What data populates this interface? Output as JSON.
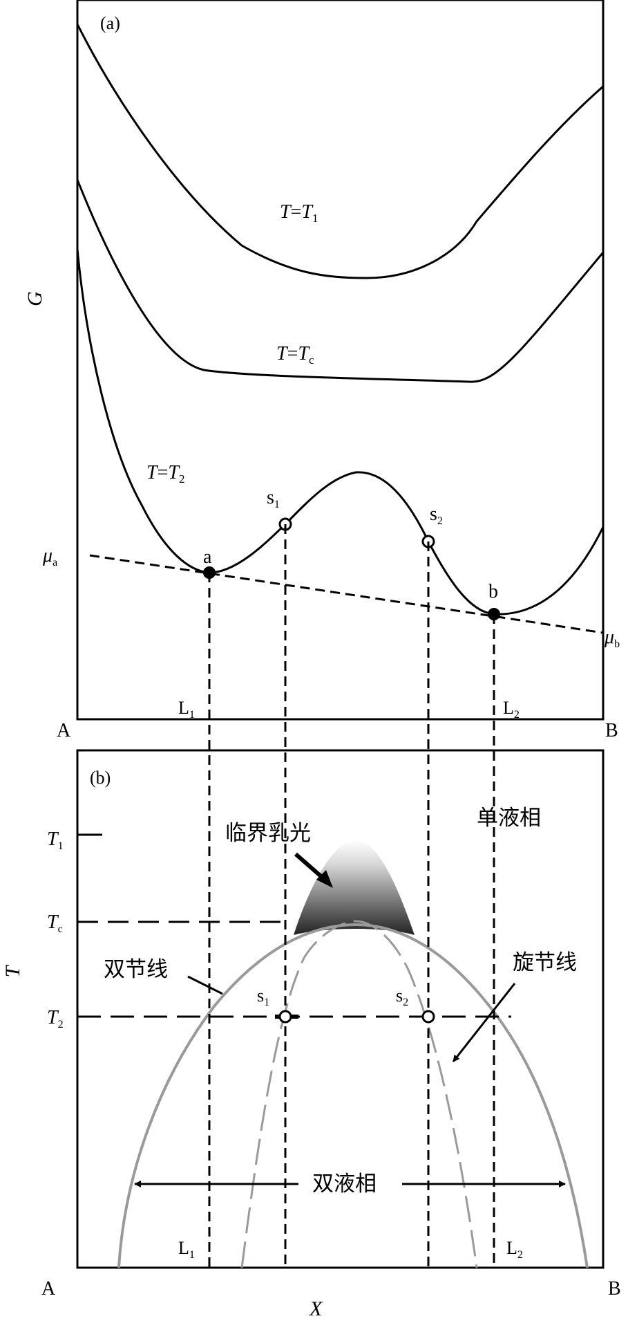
{
  "panel_a": {
    "label": "(a)",
    "y_axis_label": "G",
    "corner_left": "A",
    "corner_right": "B",
    "curves": [
      {
        "id": "t1",
        "label_main": "T",
        "label_eq": "=",
        "label_var": "T",
        "label_sub": "1"
      },
      {
        "id": "tc",
        "label_main": "T",
        "label_eq": "=",
        "label_var": "T",
        "label_sub": "c"
      },
      {
        "id": "t2",
        "label_main": "T",
        "label_eq": "=",
        "label_var": "T",
        "label_sub": "2"
      }
    ],
    "points": {
      "a": "a",
      "b": "b",
      "s1_main": "s",
      "s1_sub": "1",
      "s2_main": "s",
      "s2_sub": "2"
    },
    "mu_a_main": "μ",
    "mu_a_sub": "a",
    "mu_b_main": "μ",
    "mu_b_sub": "b",
    "l1_main": "L",
    "l1_sub": "1",
    "l2_main": "L",
    "l2_sub": "2"
  },
  "panel_b": {
    "label": "(b)",
    "y_axis_label": "T",
    "x_axis_label": "X",
    "corner_left": "A",
    "corner_right": "B",
    "ticks": {
      "t1_main": "T",
      "t1_sub": "1",
      "tc_main": "T",
      "tc_sub": "c",
      "t2_main": "T",
      "t2_sub": "2"
    },
    "labels": {
      "critical_opalescence": "临界乳光",
      "single_liquid": "单液相",
      "binodal": "双节线",
      "spinodal": "旋节线",
      "two_liquid": "双液相"
    },
    "s1_main": "s",
    "s1_sub": "1",
    "s2_main": "s",
    "s2_sub": "2",
    "l1_main": "L",
    "l1_sub": "1",
    "l2_main": "L",
    "l2_sub": "2"
  },
  "colors": {
    "ink": "#000000",
    "gray_curve": "#9a9a9a",
    "gradient_dark": "#222222",
    "gradient_light": "#ffffff"
  }
}
